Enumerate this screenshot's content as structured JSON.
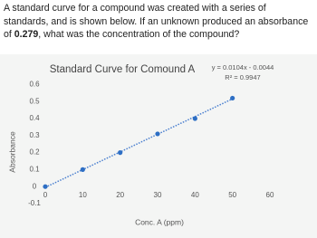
{
  "question": {
    "before": "A standard curve for a compound was created with a series of standards, and is shown below. If an unknown produced an absorbance of ",
    "bold": "0.279",
    "after": ", what was the concentration of the compound?"
  },
  "chart_data": {
    "type": "scatter",
    "title": "Standard Curve for Comound A",
    "x_label": "Conc. A (ppm)",
    "y_label": "Absorbance",
    "x": [
      0,
      10,
      20,
      30,
      40,
      50
    ],
    "values": [
      0,
      0.1,
      0.2,
      0.31,
      0.4,
      0.52
    ],
    "color": "#2e6fc4",
    "trendline": {
      "label": "y = 0.0104x - 0.0044",
      "r2_label": "R² = 0.9947",
      "slope": 0.0104,
      "intercept": -0.0044
    },
    "xlim": [
      0,
      60
    ],
    "xticks": [
      0,
      10,
      20,
      30,
      40,
      50,
      60
    ],
    "ylim": [
      -0.1,
      0.65
    ],
    "yticks": [
      -0.1,
      0,
      0.1,
      0.2,
      0.3,
      0.4,
      0.5,
      0.6
    ],
    "grid": false
  }
}
